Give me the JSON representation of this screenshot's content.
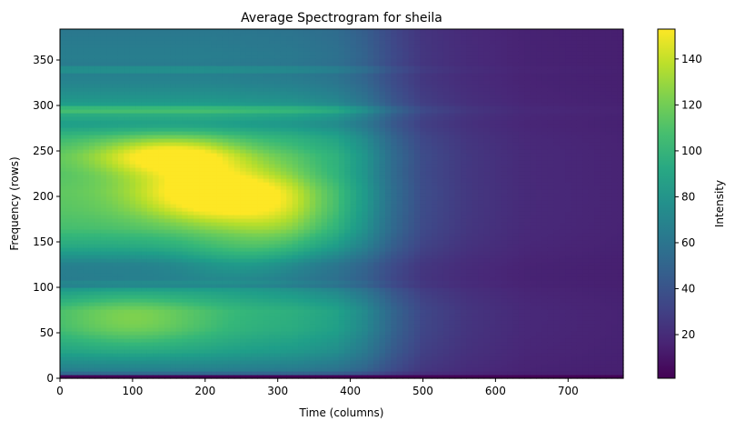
{
  "chart_data": {
    "type": "heatmap",
    "title": "Average Spectrogram for sheila",
    "xlabel": "Time (columns)",
    "ylabel": "Frequency (rows)",
    "xlim": [
      0,
      776
    ],
    "ylim": [
      0,
      384
    ],
    "x_ticks": [
      0,
      100,
      200,
      300,
      400,
      500,
      600,
      700
    ],
    "y_ticks": [
      0,
      50,
      100,
      150,
      200,
      250,
      300,
      350
    ],
    "colormap": "viridis",
    "colorbar": {
      "label": "Intensity",
      "min": 1,
      "max": 153,
      "ticks": [
        20,
        40,
        60,
        80,
        100,
        120,
        140
      ]
    },
    "grid": false,
    "baseline_level": 12,
    "low_band": {
      "y_max": 4,
      "level": 2
    },
    "time_envelope": [
      [
        0,
        1.0
      ],
      [
        200,
        1.0
      ],
      [
        320,
        0.94
      ],
      [
        380,
        0.85
      ],
      [
        420,
        0.68
      ],
      [
        460,
        0.42
      ],
      [
        500,
        0.24
      ],
      [
        560,
        0.14
      ],
      [
        640,
        0.07
      ],
      [
        776,
        0.04
      ]
    ],
    "frequency_profile": [
      [
        0,
        18
      ],
      [
        10,
        55
      ],
      [
        30,
        75
      ],
      [
        55,
        88
      ],
      [
        75,
        90
      ],
      [
        95,
        72
      ],
      [
        110,
        52
      ],
      [
        125,
        55
      ],
      [
        145,
        80
      ],
      [
        165,
        95
      ],
      [
        185,
        100
      ],
      [
        205,
        102
      ],
      [
        225,
        98
      ],
      [
        245,
        100
      ],
      [
        265,
        90
      ],
      [
        280,
        72
      ],
      [
        292,
        85
      ],
      [
        305,
        70
      ],
      [
        325,
        58
      ],
      [
        345,
        52
      ],
      [
        355,
        54
      ],
      [
        384,
        50
      ]
    ],
    "hotspots": [
      {
        "time": 210,
        "frequency": 204,
        "time_spread": 75,
        "frequency_spread": 22,
        "intensity": 55
      },
      {
        "time": 150,
        "frequency": 245,
        "time_spread": 70,
        "frequency_spread": 15,
        "intensity": 48
      },
      {
        "time": 300,
        "frequency": 185,
        "time_spread": 55,
        "frequency_spread": 30,
        "intensity": 25
      },
      {
        "time": 100,
        "frequency": 65,
        "time_spread": 70,
        "frequency_spread": 22,
        "intensity": 22
      },
      {
        "time": 250,
        "frequency": 130,
        "time_spread": 60,
        "frequency_spread": 20,
        "intensity": 15
      }
    ],
    "horizontal_bands": [
      {
        "frequency": 340,
        "delta": 10
      },
      {
        "frequency": 295,
        "delta": 12
      },
      {
        "frequency": 102,
        "delta": -8
      }
    ]
  }
}
